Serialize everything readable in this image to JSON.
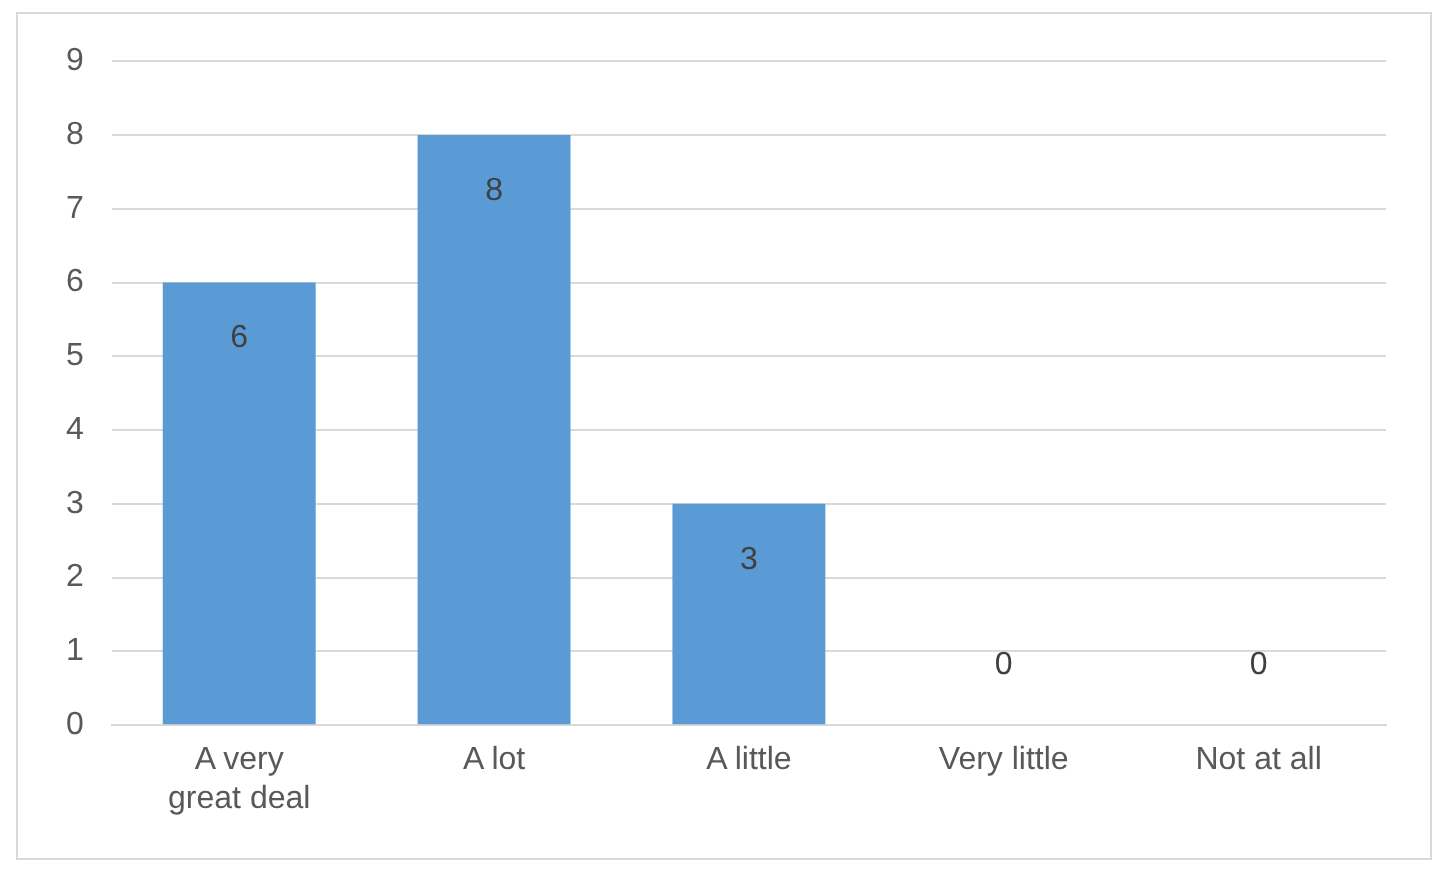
{
  "chart_data": {
    "type": "bar",
    "categories": [
      "A very great deal",
      "A lot",
      "A little",
      "Very little",
      "Not at all"
    ],
    "values": [
      6,
      8,
      3,
      0,
      0
    ],
    "color": "#5b9bd5",
    "ylim": [
      0,
      9
    ],
    "yticks": [
      0,
      1,
      2,
      3,
      4,
      5,
      6,
      7,
      8,
      9
    ],
    "grid": "y",
    "data_labels": true,
    "legend": false
  }
}
